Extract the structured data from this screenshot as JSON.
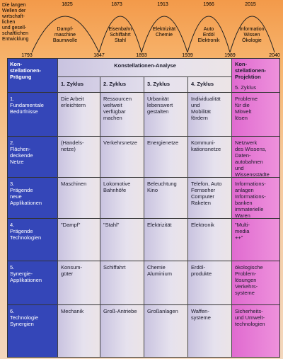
{
  "header": {
    "intro": [
      "Die langen",
      "Wellen der",
      "wirtschaft-",
      "lichen",
      "und gesell-",
      "schaftlichen",
      "Entwicklung"
    ],
    "years": [
      "1793",
      "1825",
      "1847",
      "1873",
      "1893",
      "1913",
      "1939",
      "1966",
      "1989",
      "2015",
      "2040"
    ],
    "waves": [
      [
        "Dampf-",
        "maschine",
        "Baumwolle"
      ],
      [
        "Eisenbahn",
        "Schiffahrt",
        "Stahl"
      ],
      [
        "Elektrizität",
        "Chemie"
      ],
      [
        "Auto",
        "Erdöl",
        "Elektronik"
      ],
      [
        "Information",
        "Wissen",
        "Ökologie"
      ]
    ]
  },
  "table": {
    "left_header": [
      "Kon-",
      "stellationen-",
      "Prägung"
    ],
    "analysis_header": "Konstellationen-Analyse",
    "cycles": [
      "1. Zyklus",
      "2. Zyklus",
      "3. Zyklus",
      "4. Zyklus"
    ],
    "projection_header": [
      "Kon-",
      "stellationen-",
      "Projektion"
    ],
    "projection_cycle": "5. Zyklus",
    "rows": [
      {
        "label": [
          "1.",
          "Fundamentale",
          "Bedürfnisse"
        ],
        "cells": [
          [
            "Die Arbeit",
            "erleichtern"
          ],
          [
            "Ressourcen",
            "weltweit",
            "verfügbar",
            "machen"
          ],
          [
            "Urbanität",
            "lebenswert",
            "gestalten"
          ],
          [
            "Individualität",
            "und",
            "Mobilität",
            "fördern"
          ],
          [
            "Probleme",
            "für die",
            "Mitwelt",
            "lösen"
          ]
        ]
      },
      {
        "label": [
          "2.",
          "Flächen-",
          "deckende",
          "Netze"
        ],
        "cells": [
          [
            "(Handels-",
            "netze)"
          ],
          [
            "Verkehrsnetze"
          ],
          [
            "Energienetze"
          ],
          [
            "Kommuni-",
            "kationsnetze"
          ],
          [
            "Netzwerk",
            "des Wissens,",
            "Daten-",
            "autobahnen",
            "und Wissensstädte"
          ]
        ]
      },
      {
        "label": [
          "3.",
          "Prägende",
          "neue",
          "Applikationen"
        ],
        "cells": [
          [
            "Maschinen"
          ],
          [
            "Lokomotive",
            "Bahnhöfe"
          ],
          [
            "Beleuchtung",
            "Kino"
          ],
          [
            "Telefon, Auto",
            "Fernseher",
            "Computer",
            "Raketen"
          ],
          [
            "Informations-",
            "anlagen",
            "Informations-",
            "banken",
            "immaterielle",
            "Waren"
          ]
        ]
      },
      {
        "label": [
          "4.",
          "Prägende",
          "Technologien"
        ],
        "cells": [
          [
            "\"Dampf\""
          ],
          [
            "\"Stahl\""
          ],
          [
            "Elektrizität"
          ],
          [
            "Elektronik"
          ],
          [
            "\"Multi-",
            "media",
            "++\""
          ]
        ]
      },
      {
        "label": [
          "5.",
          "Synergie-",
          "Applikationen"
        ],
        "cells": [
          [
            "Konsum-",
            "güter"
          ],
          [
            "Schiffahrt"
          ],
          [
            "Chemie",
            "Aluminium"
          ],
          [
            "Erdöl-",
            "produkte"
          ],
          [
            "ökologische",
            "Problem-",
            "lösungen",
            "Verkehrs-",
            "systeme"
          ]
        ]
      },
      {
        "label": [
          "6.",
          "Technologie",
          "Synergien"
        ],
        "cells": [
          [
            "Mechanik"
          ],
          [
            "Groß-Antriebe"
          ],
          [
            "Großanlagen"
          ],
          [
            "Waffen-",
            "systeme"
          ],
          [
            "Sicherheits-",
            "und Umwelt-",
            "technologien"
          ]
        ]
      }
    ]
  }
}
